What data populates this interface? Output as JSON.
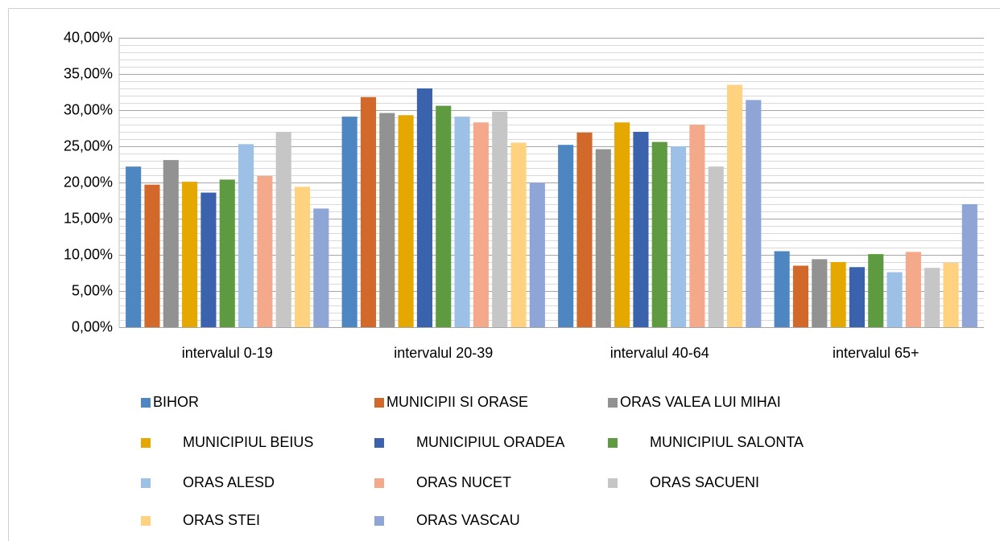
{
  "chart_data": {
    "type": "bar",
    "categories": [
      "intervalul 0-19",
      "intervalul 20-39",
      "intervalul 40-64",
      "intervalul 65+"
    ],
    "series": [
      {
        "name": "BIHOR",
        "color": "#4e86c1",
        "values": [
          22.2,
          29.1,
          25.2,
          10.5
        ]
      },
      {
        "name": "MUNICIPII SI ORASE",
        "color": "#d2692a",
        "values": [
          19.7,
          31.8,
          26.9,
          8.5
        ]
      },
      {
        "name": "ORAS VALEA LUI MIHAI",
        "color": "#929292",
        "values": [
          23.1,
          29.6,
          24.6,
          9.4
        ]
      },
      {
        "name": "MUNICIPIUL BEIUS",
        "color": "#e5a800",
        "values": [
          20.1,
          29.3,
          28.3,
          9.0
        ]
      },
      {
        "name": "MUNICIPIUL ORADEA",
        "color": "#3a62ad",
        "values": [
          18.6,
          33.0,
          27.0,
          8.3
        ]
      },
      {
        "name": "MUNICIPIUL SALONTA",
        "color": "#5e9a40",
        "values": [
          20.4,
          30.6,
          25.6,
          10.1
        ]
      },
      {
        "name": "ORAS ALESD",
        "color": "#9dc0e6",
        "values": [
          25.3,
          29.1,
          25.0,
          7.6
        ]
      },
      {
        "name": "ORAS NUCET",
        "color": "#f3a98a",
        "values": [
          20.9,
          28.3,
          28.0,
          10.4
        ]
      },
      {
        "name": "ORAS SACUENI",
        "color": "#c6c6c6",
        "values": [
          27.0,
          29.8,
          22.2,
          8.2
        ]
      },
      {
        "name": "ORAS STEI",
        "color": "#ffd27f",
        "values": [
          19.4,
          25.5,
          33.5,
          8.9
        ]
      },
      {
        "name": "ORAS VASCAU",
        "color": "#8fa5d6",
        "values": [
          16.4,
          20.0,
          31.4,
          17.0
        ]
      }
    ],
    "ylim": [
      0,
      40
    ],
    "yticks": [
      {
        "value": 0,
        "label": "0,00%"
      },
      {
        "value": 5,
        "label": "5,00%"
      },
      {
        "value": 10,
        "label": "10,00%"
      },
      {
        "value": 15,
        "label": "15,00%"
      },
      {
        "value": 20,
        "label": "20,00%"
      },
      {
        "value": 25,
        "label": "25,00%"
      },
      {
        "value": 30,
        "label": "30,00%"
      },
      {
        "value": 35,
        "label": "35,00%"
      },
      {
        "value": 40,
        "label": "40,00%"
      }
    ],
    "minor_yticks": [
      1,
      2,
      3,
      4,
      6,
      7,
      8,
      9,
      11,
      12,
      13,
      14,
      16,
      17,
      18,
      19,
      21,
      22,
      23,
      24,
      26,
      27,
      28,
      29,
      31,
      32,
      33,
      34,
      36,
      37,
      38,
      39
    ],
    "grid": true,
    "legend": "bottom"
  }
}
